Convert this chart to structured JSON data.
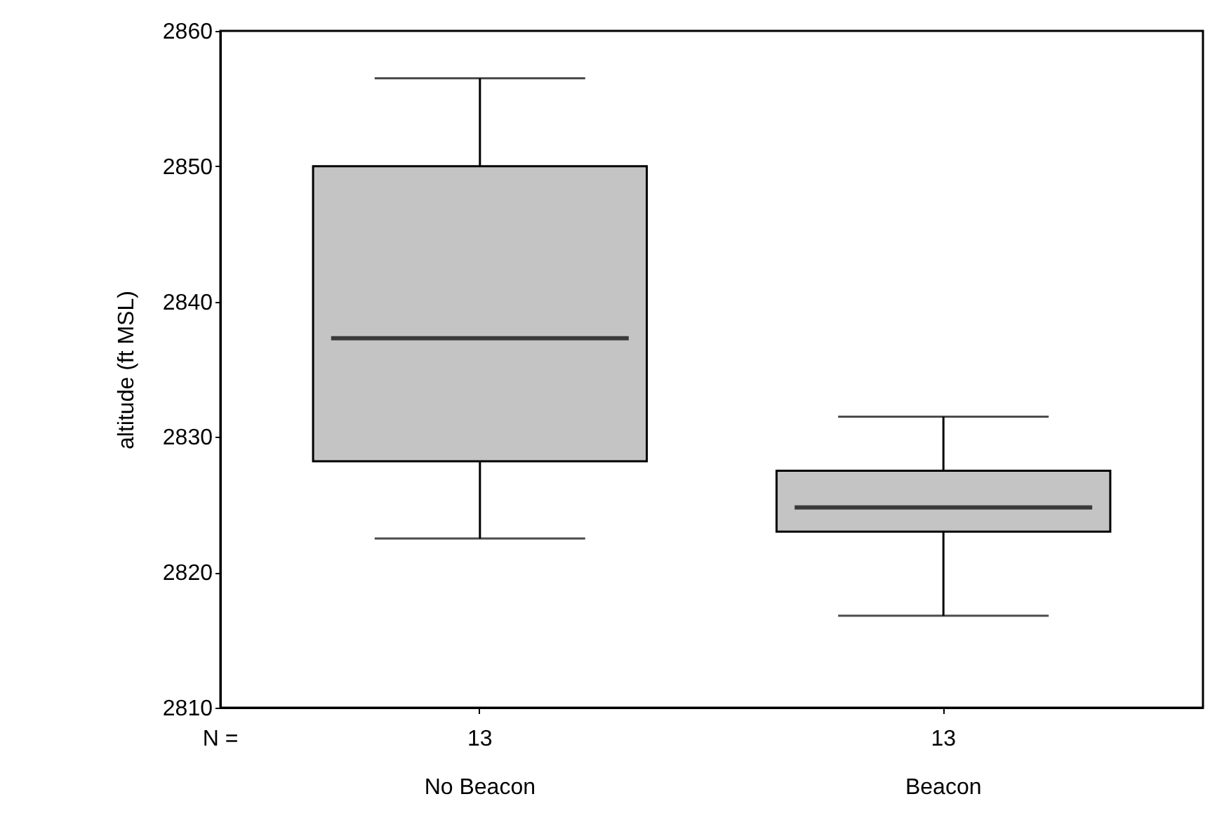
{
  "chart_data": {
    "type": "box",
    "ylabel": "altitude (ft MSL)",
    "categories": [
      "No Beacon",
      "Beacon"
    ],
    "series": [
      {
        "color": "#c4c4c4",
        "boxes": [
          {
            "low": 2822.5,
            "q1": 2828.2,
            "median": 2837.3,
            "q3": 2850,
            "high": 2856.5
          },
          {
            "low": 2816.8,
            "q1": 2823,
            "median": 2824.8,
            "q3": 2827.5,
            "high": 2831.5
          }
        ]
      }
    ],
    "ylim": [
      2810,
      2860
    ],
    "yticks": [
      2810,
      2820,
      2830,
      2840,
      2850,
      2860
    ],
    "grid": false,
    "annotations": [
      "N =",
      {
        "text": "13",
        "x": "No Beacon"
      },
      {
        "text": "13",
        "x": "Beacon"
      }
    ]
  }
}
